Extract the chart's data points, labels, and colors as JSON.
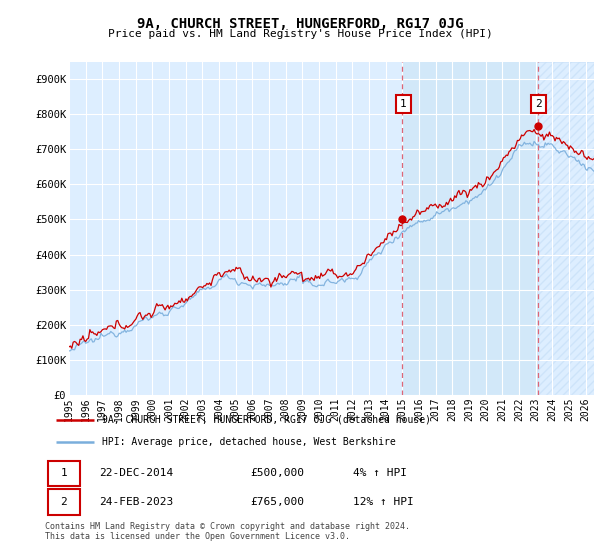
{
  "title": "9A, CHURCH STREET, HUNGERFORD, RG17 0JG",
  "subtitle": "Price paid vs. HM Land Registry's House Price Index (HPI)",
  "ylabel_ticks": [
    "£0",
    "£100K",
    "£200K",
    "£300K",
    "£400K",
    "£500K",
    "£600K",
    "£700K",
    "£800K",
    "£900K"
  ],
  "ytick_values": [
    0,
    100000,
    200000,
    300000,
    400000,
    500000,
    600000,
    700000,
    800000,
    900000
  ],
  "ylim": [
    0,
    950000
  ],
  "xlim_start": 1995.0,
  "xlim_end": 2026.5,
  "hpi_color": "#7aaedc",
  "price_color": "#cc0000",
  "marker1_x": 2014.97,
  "marker1_y": 500000,
  "marker2_x": 2023.12,
  "marker2_y": 765000,
  "marker1_label": "1",
  "marker2_label": "2",
  "shade_between_x1": 2015.0,
  "shade_between_x2": 2023.12,
  "legend_line1": "9A, CHURCH STREET, HUNGERFORD, RG17 0JG (detached house)",
  "legend_line2": "HPI: Average price, detached house, West Berkshire",
  "table_row1": [
    "1",
    "22-DEC-2014",
    "£500,000",
    "4% ↑ HPI"
  ],
  "table_row2": [
    "2",
    "24-FEB-2023",
    "£765,000",
    "12% ↑ HPI"
  ],
  "footer": "Contains HM Land Registry data © Crown copyright and database right 2024.\nThis data is licensed under the Open Government Licence v3.0.",
  "dashed_line1_x": 2015.0,
  "dashed_line2_x": 2023.12,
  "background_color": "#ffffff",
  "plot_bg_color": "#ddeeff",
  "grid_color": "#ffffff"
}
